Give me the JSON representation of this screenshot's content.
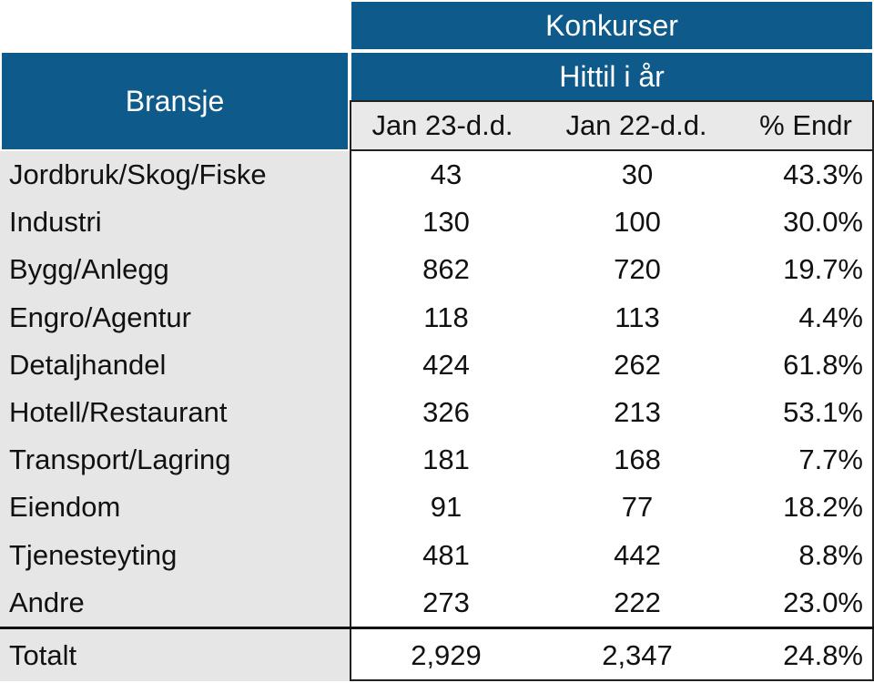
{
  "header": {
    "group_title": "Konkurser",
    "sub_title": "Hittil i år",
    "row_header": "Bransje",
    "columns": [
      "Jan 23-d.d.",
      "Jan 22-d.d.",
      "% Endr"
    ]
  },
  "rows": [
    {
      "name": "Jordbruk/Skog/Fiske",
      "a": "43",
      "b": "30",
      "c": "43.3%"
    },
    {
      "name": "Industri",
      "a": "130",
      "b": "100",
      "c": "30.0%"
    },
    {
      "name": "Bygg/Anlegg",
      "a": "862",
      "b": "720",
      "c": "19.7%"
    },
    {
      "name": "Engro/Agentur",
      "a": "118",
      "b": "113",
      "c": "4.4%"
    },
    {
      "name": "Detaljhandel",
      "a": "424",
      "b": "262",
      "c": "61.8%"
    },
    {
      "name": "Hotell/Restaurant",
      "a": "326",
      "b": "213",
      "c": "53.1%"
    },
    {
      "name": "Transport/Lagring",
      "a": "181",
      "b": "168",
      "c": "7.7%"
    },
    {
      "name": "Eiendom",
      "a": "91",
      "b": "77",
      "c": "18.2%"
    },
    {
      "name": "Tjenesteyting",
      "a": "481",
      "b": "442",
      "c": "8.8%"
    },
    {
      "name": "Andre",
      "a": "273",
      "b": "222",
      "c": "23.0%"
    }
  ],
  "total": {
    "name": "Totalt",
    "a": "2,929",
    "b": "2,347",
    "c": "24.8%"
  },
  "colors": {
    "header_bg": "#0e5a8a",
    "label_bg": "#e6e6e6"
  }
}
